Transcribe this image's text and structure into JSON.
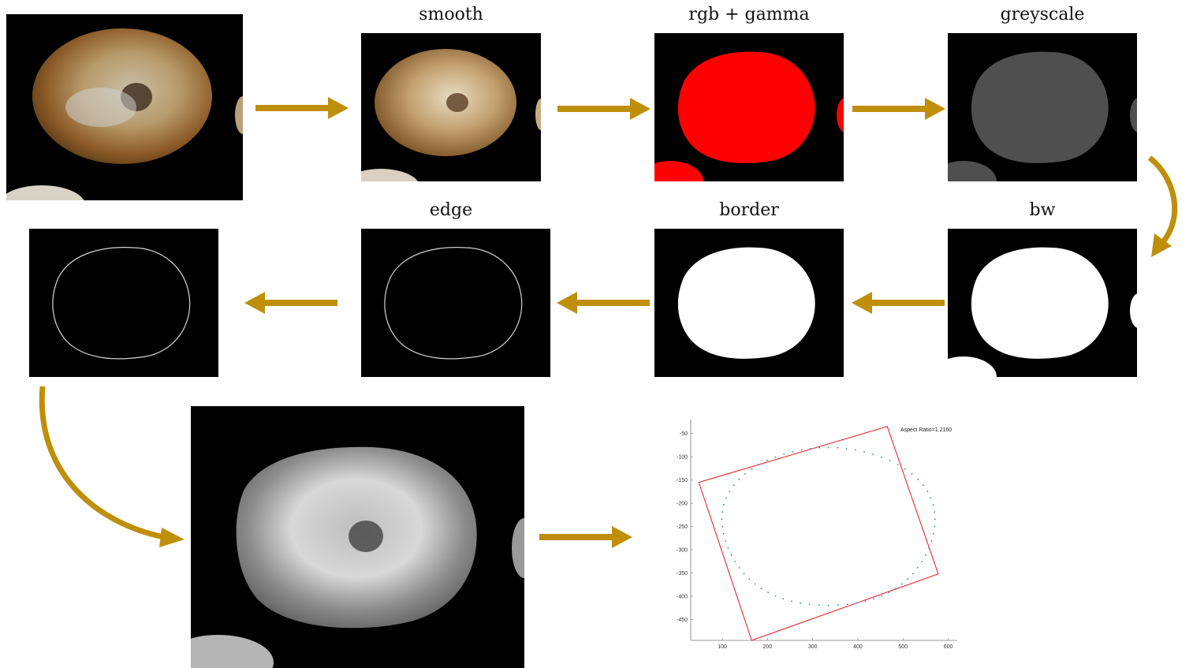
{
  "labels": {
    "smooth": "smooth",
    "rgb_gamma": "rgb + gamma",
    "greyscale": "greyscale",
    "bw": "bw",
    "border": "border",
    "edge": "edge"
  },
  "colors": {
    "arrow": "#bf8f0b",
    "mask_red": "#ff0000",
    "grey_shape": "#4f4f4f",
    "plot_box": "#e41a1c",
    "plot_points": "#2a7fd4"
  },
  "chart_data": {
    "type": "scatter",
    "annotation": "Aspect Ratio=1.2160",
    "xticks": [
      100,
      200,
      300,
      400,
      500,
      600
    ],
    "yticks": [
      -50,
      -100,
      -150,
      -200,
      -250,
      -300,
      -350,
      -400,
      -450
    ],
    "xlim": [
      30,
      620
    ],
    "ylim": [
      -495,
      -20
    ],
    "boundary_ellipse": {
      "cx": 335,
      "cy": -250,
      "rx": 235,
      "ry": 175
    },
    "bounding_box": [
      [
        48,
        -155
      ],
      [
        465,
        -35
      ],
      [
        578,
        -352
      ],
      [
        165,
        -495
      ]
    ],
    "grid": false
  }
}
